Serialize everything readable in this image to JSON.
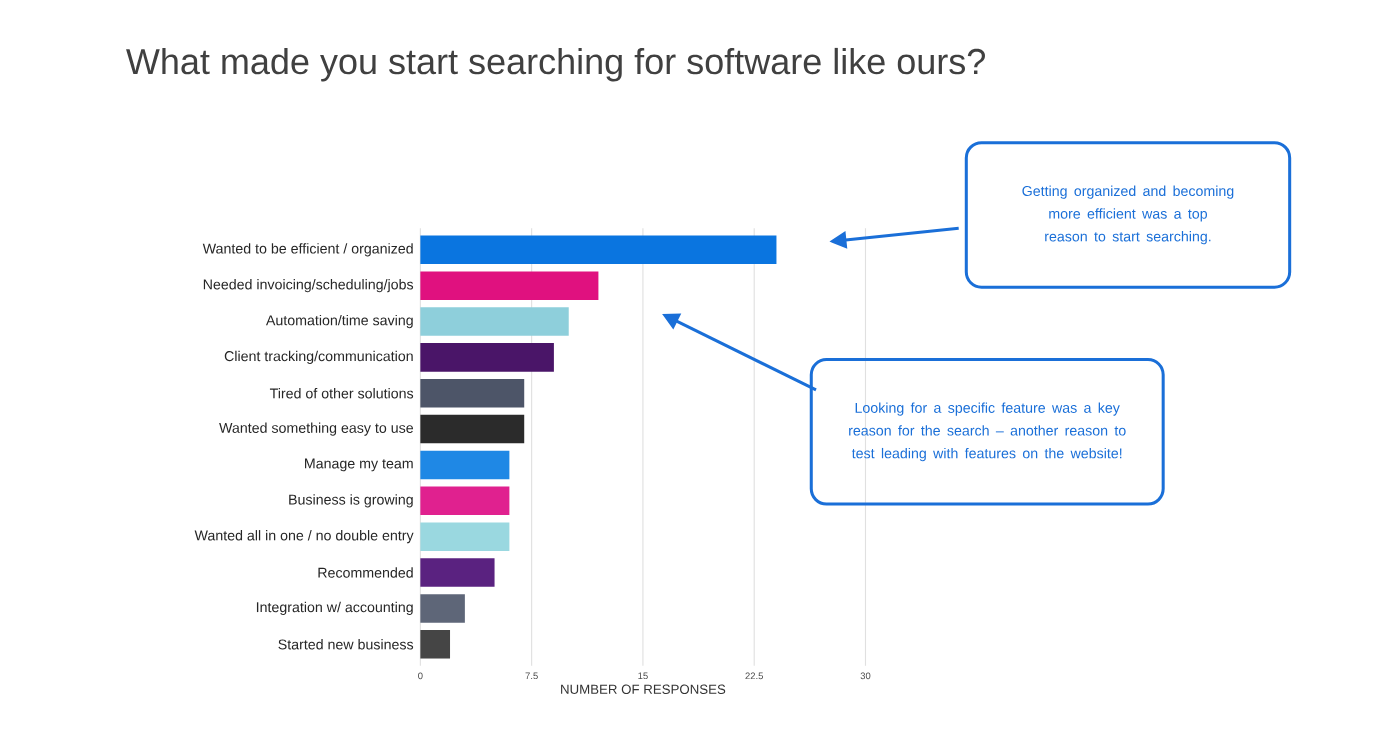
{
  "chart_data": {
    "type": "bar",
    "orientation": "horizontal",
    "title": "What made you start searching for software like ours?",
    "xlabel": "NUMBER OF RESPONSES",
    "categories": [
      "Wanted to be efficient / organized",
      "Needed invoicing/scheduling/jobs",
      "Automation/time saving",
      "Client tracking/communication",
      "Tired of other solutions",
      "Wanted something easy to use",
      "Manage my team",
      "Business is growing",
      "Wanted all in one / no double entry",
      "Recommended",
      "Integration w/ accounting",
      "Started new business"
    ],
    "values": [
      24,
      12,
      10,
      9,
      7,
      7,
      6,
      6,
      6,
      5,
      3,
      2
    ],
    "colors": [
      "#0a75e0",
      "#e0117f",
      "#8ecfdb",
      "#4a1568",
      "#4d5568",
      "#2b2b2b",
      "#1f88e5",
      "#e0218f",
      "#9ad8e0",
      "#5a2280",
      "#5e6678",
      "#454545"
    ],
    "xlim": [
      0,
      30
    ],
    "xticks": [
      0,
      7.5,
      15,
      22.5,
      30
    ],
    "grid": "x",
    "annotations": [
      "Getting organized and becoming more efficient was a top reason to start searching.",
      "Looking for a specific feature was a key reason for the search – another reason to test leading with features on the website!"
    ]
  }
}
